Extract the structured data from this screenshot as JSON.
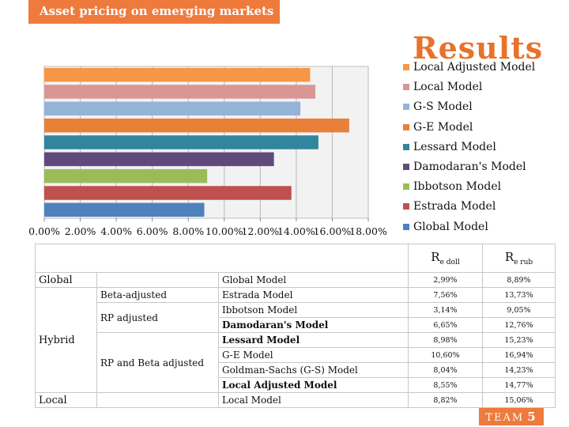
{
  "header": {
    "title": "Asset pricing on emerging markets"
  },
  "slide": {
    "title": "Results"
  },
  "chart_data": {
    "type": "bar",
    "orientation": "horizontal",
    "categories": [
      "Local Adjusted Model",
      "Local Model",
      "G-S Model",
      "G-E Model",
      "Lessard Model",
      "Damodaran's Model",
      "Ibbotson Model",
      "Estrada Model",
      "Global Model"
    ],
    "values": [
      14.77,
      15.06,
      14.23,
      16.94,
      15.23,
      12.76,
      9.05,
      13.73,
      8.89
    ],
    "colors": [
      "#f79646",
      "#d99694",
      "#95b3d7",
      "#e8803a",
      "#31859c",
      "#604a7b",
      "#9bbb59",
      "#c0504d",
      "#4f81bd"
    ],
    "xlim": [
      0,
      18
    ],
    "xticks": [
      "0.00%",
      "2.00%",
      "4.00%",
      "6.00%",
      "8.00%",
      "10.00%",
      "12.00%",
      "14.00%",
      "16.00%",
      "18.00%"
    ],
    "legend_position": "right",
    "grid": true
  },
  "table": {
    "headers": {
      "re_doll_main": "R",
      "re_doll_sub": "e doll",
      "re_rub_main": "R",
      "re_rub_sub": "e rub"
    },
    "groups": {
      "global": "Global",
      "hybrid": "Hybrid",
      "local": "Local"
    },
    "subgroups": {
      "beta": "Beta-adjusted",
      "rp": "RP adjusted",
      "rpbeta": "RP and Beta adjusted"
    },
    "rows": [
      {
        "model": "Global Model",
        "doll": "2,99%",
        "rub": "8,89%"
      },
      {
        "model": "Estrada Model",
        "doll": "7,56%",
        "rub": "13,73%"
      },
      {
        "model": "Ibbotson Model",
        "doll": "3,14%",
        "rub": "9,05%"
      },
      {
        "model": "Damodaran's Model",
        "doll": "6,65%",
        "rub": "12,76%"
      },
      {
        "model": "Lessard Model",
        "doll": "8,98%",
        "rub": "15,23%"
      },
      {
        "model": "G-E Model",
        "doll": "10,60%",
        "rub": "16,94%"
      },
      {
        "model": "Goldman-Sachs (G-S) Model",
        "doll": "8,04%",
        "rub": "14,23%"
      },
      {
        "model": "Local Adjusted Model",
        "doll": "8,55%",
        "rub": "14,77%"
      },
      {
        "model": "Local Model",
        "doll": "8,82%",
        "rub": "15,06%"
      }
    ]
  },
  "footer": {
    "team": "TEAM",
    "number": "5"
  }
}
